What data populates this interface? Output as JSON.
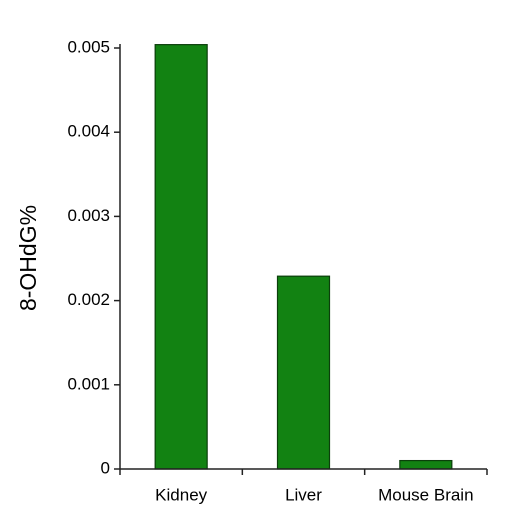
{
  "chart_data": {
    "type": "bar",
    "y_label": "8-OHdG%",
    "categories": [
      "Kidney",
      "Liver",
      "Mouse Brain"
    ],
    "values": [
      0.00504,
      0.00229,
      0.0001
    ],
    "color": "#128212",
    "ylim": [
      0,
      0.005
    ],
    "yticks": [
      0,
      0.001,
      0.002,
      0.003,
      0.004,
      0.005
    ],
    "grid": false
  }
}
